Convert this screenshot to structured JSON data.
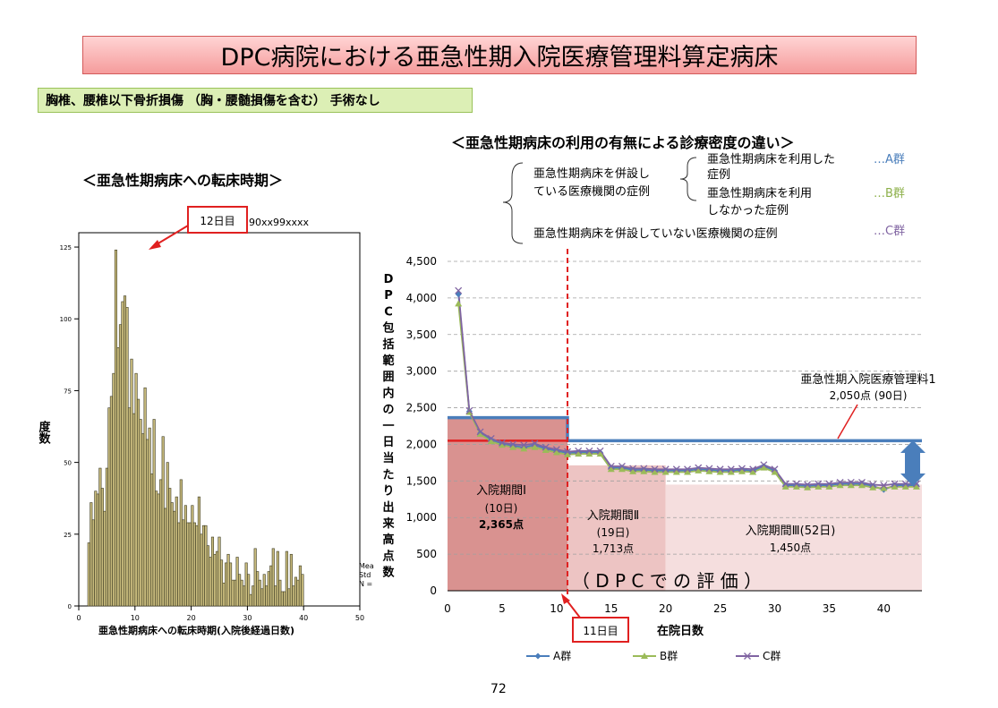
{
  "slide": {
    "title": "DPC病院における亜急性期入院医療管理料算定病床",
    "subtitle": "胸椎、腰椎以下骨折損傷 （胸・腰髄損傷を含む） 手術なし",
    "page_number": "72"
  },
  "left_panel": {
    "heading": "＜亜急性期病床への転床時期＞",
    "callout": "12日目",
    "overlay_text": "90xx99xxxx",
    "stats_text": [
      "Mea",
      "Std",
      "N ="
    ]
  },
  "right_panel": {
    "heading": "＜亜急性期病床の利用の有無による診療密度の違い＞",
    "legend_notes": {
      "group_label": [
        "亜急性期病床を併設し",
        "ている医療機関の症例"
      ],
      "a_text": [
        "亜急性期病床を利用した",
        "症例"
      ],
      "b_text": [
        "亜急性期病床を利用",
        "しなかった症例"
      ],
      "c_text": "亜急性期病床を併設していない医療機関の症例",
      "a_tag": "…A群",
      "b_tag": "…B群",
      "c_tag": "…C群"
    },
    "annotation_fee": [
      "亜急性期入院医療管理料1",
      "2,050点 (90日)"
    ],
    "period1": [
      "入院期間Ⅰ",
      "(10日)",
      "2,365点"
    ],
    "period2": [
      "入院期間Ⅱ",
      "(19日)",
      "1,713点"
    ],
    "period3": [
      "入院期間Ⅲ(52日)",
      "1,450点"
    ],
    "dpc_eval": "（ D P C で の 評 価 ）",
    "day11_callout": "11日目"
  },
  "chart_data": [
    {
      "type": "bar",
      "ylabel": "度数",
      "xlabel": "亜急性期病床への転床時期(入院後経過日数)",
      "xlim": [
        0,
        50
      ],
      "ylim": [
        0,
        130
      ],
      "x_ticks": [
        0,
        10,
        20,
        30,
        40,
        50
      ],
      "y_ticks": [
        0,
        25,
        50,
        75,
        100,
        125
      ],
      "bin_width": 0.8,
      "bin_start": 1.6,
      "values": [
        22,
        36,
        30,
        40,
        39,
        48,
        41,
        33,
        48,
        69,
        73,
        81,
        124,
        90,
        98,
        106,
        108,
        104,
        69,
        86,
        67,
        81,
        72,
        65,
        60,
        76,
        58,
        62,
        46,
        65,
        40,
        39,
        44,
        59,
        34,
        50,
        41,
        36,
        33,
        38,
        29,
        44,
        30,
        35,
        29,
        29,
        35,
        29,
        28,
        38,
        25,
        28,
        28,
        21,
        17,
        24,
        18,
        19,
        24,
        16,
        8,
        15,
        18,
        15,
        9,
        9,
        17,
        11,
        9,
        7,
        15,
        11,
        4,
        7,
        20,
        12,
        9,
        6,
        11,
        7,
        12,
        14,
        20,
        7,
        19,
        9,
        5,
        5,
        19,
        6,
        18,
        7,
        10,
        9,
        14,
        11
      ]
    },
    {
      "type": "line",
      "ylabel": "DPC包括範囲内の一日当たり出来高点数",
      "xlabel": "在院日数",
      "xlim": [
        0,
        43.5
      ],
      "ylim": [
        0,
        4500
      ],
      "x_ticks": [
        0,
        5,
        10,
        15,
        20,
        25,
        30,
        35,
        40
      ],
      "y_ticks": [
        0,
        500,
        1000,
        1500,
        2000,
        2500,
        3000,
        3500,
        4000,
        4500
      ],
      "y_tick_labels": [
        "0",
        "500",
        "1,000",
        "1,500",
        "2,000",
        "2,500",
        "3,000",
        "3,500",
        "4,000",
        "4,500"
      ],
      "legend": "bottom",
      "x": [
        1,
        2,
        3,
        4,
        5,
        6,
        7,
        8,
        9,
        10,
        11,
        12,
        13,
        14,
        15,
        16,
        17,
        18,
        19,
        20,
        21,
        22,
        23,
        24,
        25,
        26,
        27,
        28,
        29,
        30,
        31,
        32,
        33,
        34,
        35,
        36,
        37,
        38,
        39,
        40,
        41,
        42,
        43
      ],
      "series": [
        {
          "name": "A群",
          "color": "#4a7ebb",
          "marker": "diamond",
          "values": [
            4050,
            2450,
            2150,
            2060,
            2000,
            1980,
            1960,
            1990,
            1940,
            1910,
            1880,
            1890,
            1890,
            1890,
            1680,
            1680,
            1650,
            1650,
            1640,
            1640,
            1640,
            1640,
            1660,
            1650,
            1640,
            1640,
            1650,
            1640,
            1700,
            1640,
            1440,
            1440,
            1430,
            1440,
            1440,
            1460,
            1460,
            1460,
            1430,
            1380,
            1440,
            1440,
            1440
          ]
        },
        {
          "name": "B群",
          "color": "#9bbb59",
          "marker": "triangle",
          "values": [
            3920,
            2440,
            2140,
            2040,
            1990,
            1960,
            1940,
            1960,
            1920,
            1890,
            1860,
            1870,
            1870,
            1870,
            1660,
            1660,
            1630,
            1630,
            1620,
            1620,
            1620,
            1620,
            1640,
            1630,
            1620,
            1620,
            1630,
            1620,
            1680,
            1620,
            1420,
            1420,
            1410,
            1420,
            1420,
            1440,
            1440,
            1440,
            1410,
            1400,
            1420,
            1420,
            1420
          ]
        },
        {
          "name": "C群",
          "color": "#8064a2",
          "marker": "x",
          "values": [
            4100,
            2460,
            2170,
            2080,
            2020,
            2000,
            1990,
            2010,
            1960,
            1930,
            1900,
            1910,
            1910,
            1910,
            1700,
            1700,
            1670,
            1670,
            1660,
            1660,
            1660,
            1660,
            1680,
            1670,
            1660,
            1660,
            1670,
            1660,
            1720,
            1660,
            1460,
            1460,
            1450,
            1460,
            1460,
            1480,
            1480,
            1480,
            1450,
            1440,
            1460,
            1460,
            1460
          ]
        }
      ],
      "reference_lines": {
        "fee_level": 2050,
        "period1_level": 2365,
        "day_marker": 11
      }
    }
  ]
}
